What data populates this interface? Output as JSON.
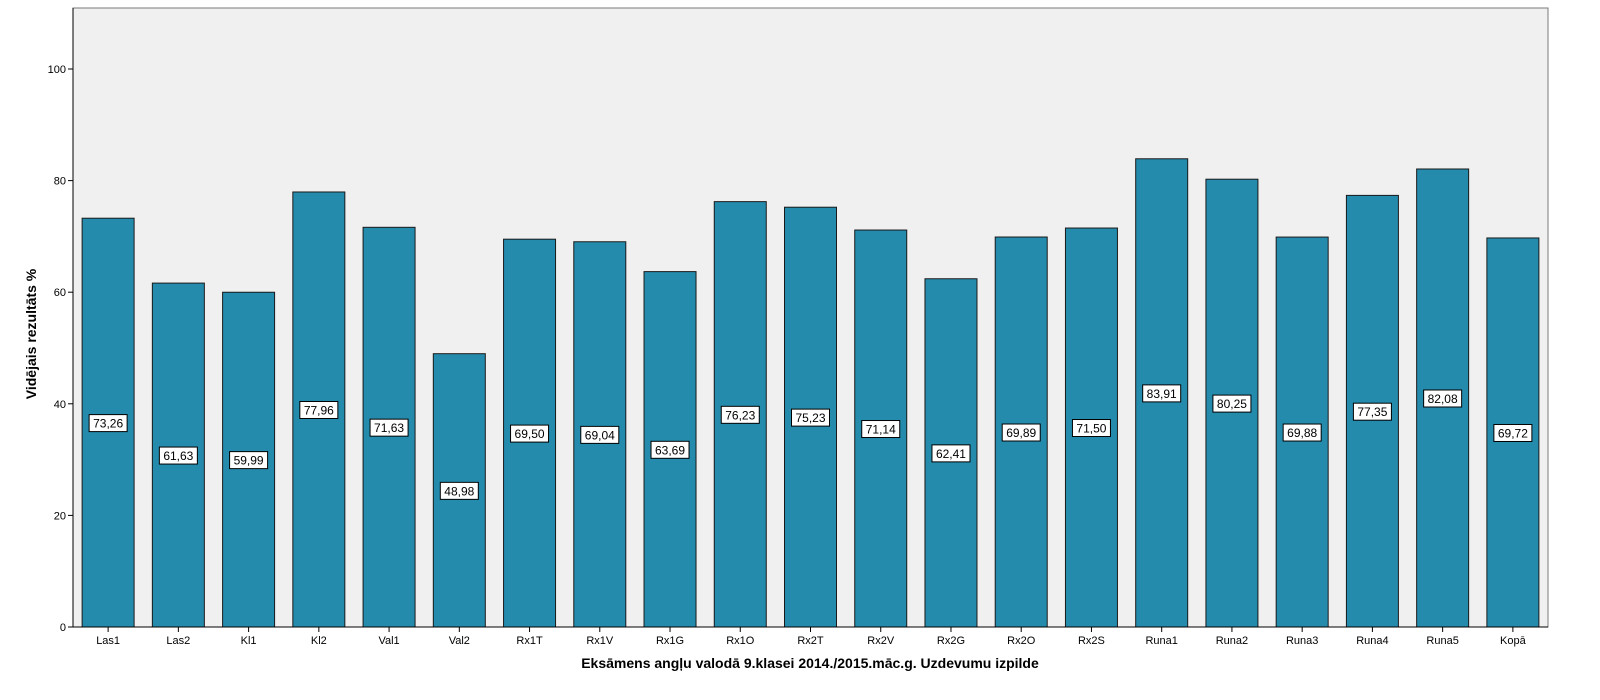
{
  "chart_data": {
    "type": "bar",
    "title": "",
    "xlabel": "Eksāmens angļu valodā 9.klasei 2014./2015.māc.g. Uzdevumu izpilde",
    "ylabel": "Vidējais rezultāts %",
    "ylim": [
      0,
      111
    ],
    "yticks": [
      0,
      20,
      40,
      60,
      80,
      100
    ],
    "grid": false,
    "categories": [
      "Las1",
      "Las2",
      "Kl1",
      "Kl2",
      "Val1",
      "Val2",
      "Rx1T",
      "Rx1V",
      "Rx1G",
      "Rx1O",
      "Rx2T",
      "Rx2V",
      "Rx2G",
      "Rx2O",
      "Rx2S",
      "Runa1",
      "Runa2",
      "Runa3",
      "Runa4",
      "Runa5",
      "Kopā"
    ],
    "values": [
      73.26,
      61.63,
      59.99,
      77.96,
      71.63,
      48.98,
      69.5,
      69.04,
      63.69,
      76.23,
      75.23,
      71.14,
      62.41,
      69.89,
      71.5,
      83.91,
      80.25,
      69.88,
      77.35,
      82.08,
      69.72
    ],
    "data_labels": [
      "73,26",
      "61,63",
      "59,99",
      "77,96",
      "71,63",
      "48,98",
      "69,50",
      "69,04",
      "63,69",
      "76,23",
      "75,23",
      "71,14",
      "62,41",
      "69,89",
      "71,50",
      "83,91",
      "80,25",
      "69,88",
      "77,35",
      "82,08",
      "69,72"
    ],
    "colors": {
      "bar": "#248bad",
      "plot_background": "#f0f0f0"
    }
  }
}
